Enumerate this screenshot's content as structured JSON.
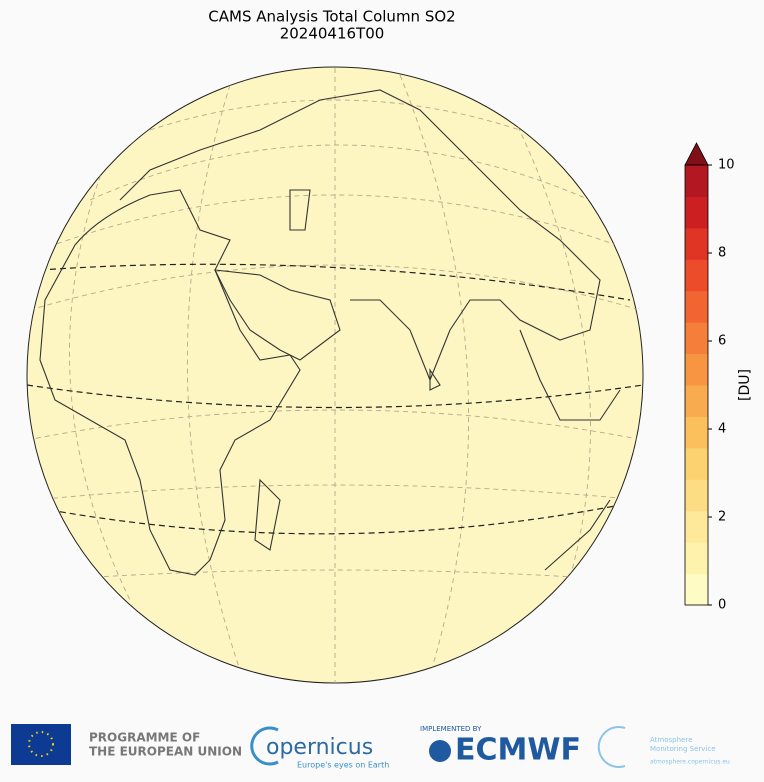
{
  "header": {
    "title": "CAMS Analysis Total Column SO2",
    "subtitle": "20240416T00"
  },
  "colorbar": {
    "label": "[DU]",
    "lim": [
      0,
      10
    ],
    "ticks": [
      0,
      2,
      4,
      6,
      8,
      10
    ],
    "colors": [
      "#fffbc4",
      "#fff2ad",
      "#fee99a",
      "#fddd84",
      "#fcd170",
      "#fbbf5c",
      "#f9ab4f",
      "#f79543",
      "#f57e3a",
      "#f26532",
      "#ec4c2a",
      "#e03424",
      "#cc1f22",
      "#b31722"
    ],
    "extend_color": "#801018"
  },
  "footer": {
    "eu_line1": "PROGRAMME OF",
    "eu_line2": "THE EUROPEAN UNION",
    "copernicus": "opernicus",
    "copernicus_tagline": "Europe's eyes on Earth",
    "implemented_by": "IMPLEMENTED BY",
    "ecmwf": "ECMWF",
    "cams_line1": "Atmosphere",
    "cams_line2": "Monitoring Service",
    "cams_url": "atmosphere.copernicus.eu"
  }
}
